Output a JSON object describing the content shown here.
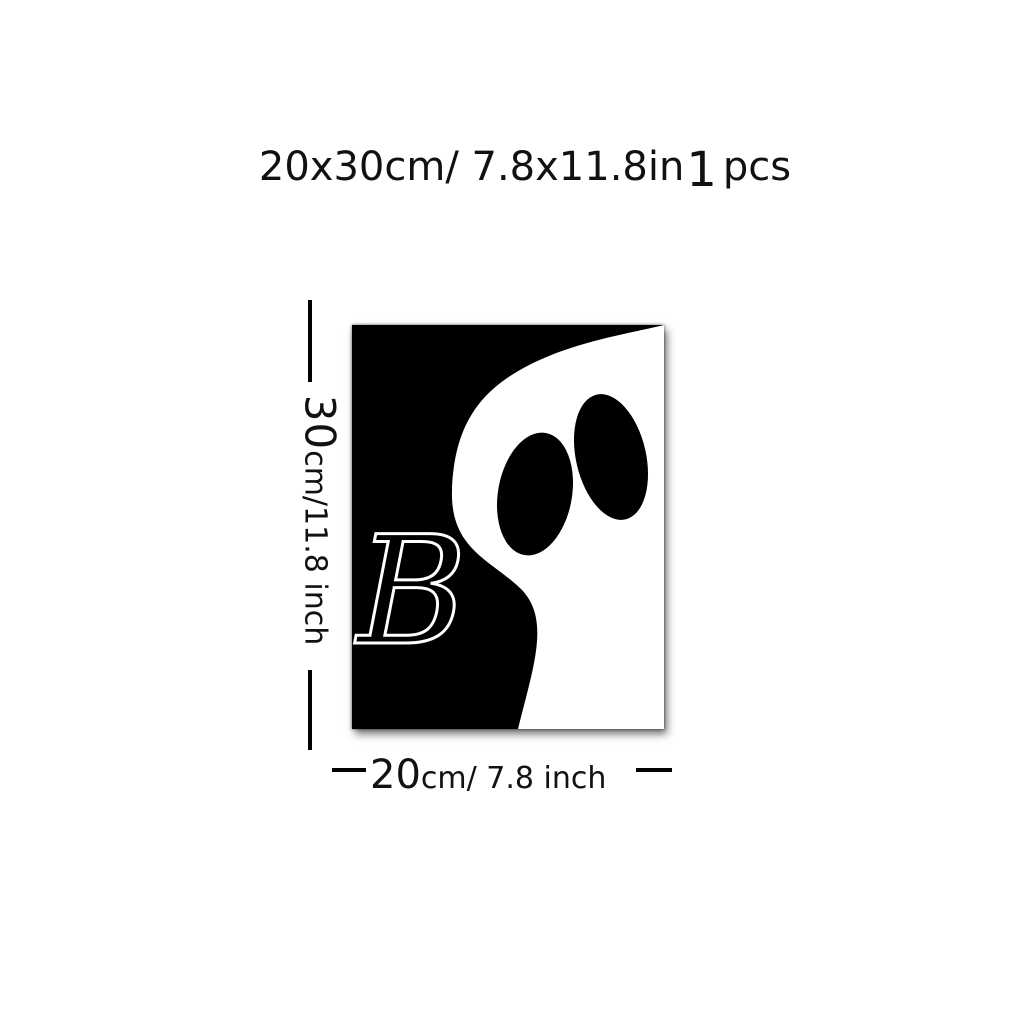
{
  "header": {
    "size_text": "20x30cm/ 7.8x11.8in",
    "quantity": "1",
    "unit": "pcs"
  },
  "dimensions": {
    "height_value": "30",
    "height_unit": "cm/11.8 inch",
    "width_value": "20",
    "width_unit": "cm/ 7.8 inch"
  },
  "poster": {
    "text": "B",
    "background_color": "#000000",
    "ghost_color": "#ffffff"
  }
}
